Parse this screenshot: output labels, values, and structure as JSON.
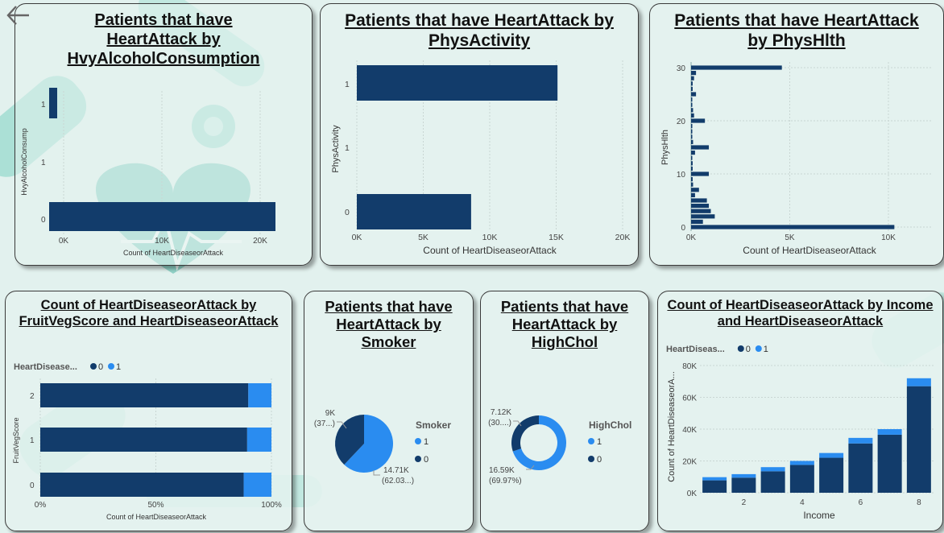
{
  "colors": {
    "dark": "#123c6b",
    "light": "#2a8cf0",
    "grid": "#c9d6d3"
  },
  "charts": {
    "c1": {
      "title": "Patients that have HeartAttack by HvyAlcoholConsumption",
      "type": "bar",
      "ylabel": "HvyAlcoholConsump",
      "xlabel": "Count of HeartDiseaseorAttack",
      "categories": [
        "1",
        "0"
      ],
      "values": [
        900,
        23000
      ],
      "xticks": [
        "0K",
        "10K",
        "20K"
      ],
      "yticks": [
        "1",
        "1",
        "0"
      ]
    },
    "c2": {
      "title": "Patients that have HeartAttack by PhysActivity",
      "type": "bar",
      "ylabel": "PhysActivity",
      "xlabel": "Count of HeartDiseaseorAttack",
      "categories": [
        "1",
        "0"
      ],
      "values": [
        15100,
        8600
      ],
      "xticks": [
        "0K",
        "5K",
        "10K",
        "15K",
        "20K"
      ],
      "yticks": [
        "1",
        "1",
        "0"
      ]
    },
    "c3": {
      "title": "Patients that have HeartAttack by PhysHlth",
      "type": "bar",
      "ylabel": "PhysHlth",
      "xlabel": "Count of HeartDiseaseorAttack",
      "xticks": [
        "0K",
        "5K",
        "10K"
      ],
      "yticks": [
        "30",
        "20",
        "10",
        "0"
      ],
      "x": [
        0,
        1,
        2,
        3,
        4,
        5,
        6,
        7,
        8,
        9,
        10,
        11,
        12,
        13,
        14,
        15,
        16,
        17,
        18,
        19,
        20,
        21,
        22,
        23,
        24,
        25,
        26,
        27,
        28,
        29,
        30
      ],
      "values": [
        10300,
        600,
        1200,
        1000,
        900,
        800,
        200,
        400,
        100,
        80,
        900,
        80,
        80,
        60,
        200,
        900,
        100,
        60,
        60,
        30,
        700,
        150,
        100,
        60,
        60,
        250,
        80,
        80,
        150,
        250,
        4600
      ]
    },
    "c4": {
      "title": "Count of HeartDiseaseorAttack by FruitVegScore and HeartDiseaseorAttack",
      "type": "bar",
      "stacked100": true,
      "legend_title": "HeartDisease...",
      "legend": [
        "0",
        "1"
      ],
      "ylabel": "FruitVegScore",
      "xlabel": "Count of HeartDiseaseorAttack",
      "categories": [
        "2",
        "1",
        "0"
      ],
      "series": [
        {
          "name": "0",
          "values": [
            90,
            89.5,
            88
          ]
        },
        {
          "name": "1",
          "values": [
            10,
            10.5,
            12
          ]
        }
      ],
      "xticks": [
        "0%",
        "50%",
        "100%"
      ]
    },
    "c5": {
      "title": "Patients that have HeartAttack by Smoker",
      "type": "pie",
      "legend_title": "Smoker",
      "legend": [
        "1",
        "0"
      ],
      "slices": [
        {
          "name": "1",
          "value": 14.71,
          "pct": 62.03
        },
        {
          "name": "0",
          "value": 9,
          "pct": 37.97
        }
      ],
      "labels": [
        {
          "v": "9K",
          "p": "(37...)"
        },
        {
          "v": "14.71K",
          "p": "(62.03...)"
        }
      ]
    },
    "c6": {
      "title": "Patients that have HeartAttack by HighChol",
      "type": "donut",
      "legend_title": "HighChol",
      "legend": [
        "1",
        "0"
      ],
      "slices": [
        {
          "name": "1",
          "value": 16.59,
          "pct": 69.97
        },
        {
          "name": "0",
          "value": 7.12,
          "pct": 30.03
        }
      ],
      "labels": [
        {
          "v": "7.12K",
          "p": "(30....)"
        },
        {
          "v": "16.59K",
          "p": "(69.97%)"
        }
      ]
    },
    "c7": {
      "title": "Count of HeartDiseaseorAttack by Income and HeartDiseaseorAttack",
      "type": "bar",
      "stacked": true,
      "legend_title": "HeartDiseas...",
      "legend": [
        "0",
        "1"
      ],
      "ylabel": "Count of HeartDiseaseorA...",
      "xlabel": "Income",
      "categories": [
        1,
        2,
        3,
        4,
        5,
        6,
        7,
        8
      ],
      "series": [
        {
          "name": "0",
          "values": [
            7800,
            9500,
            13500,
            17500,
            22000,
            31000,
            36500,
            67000
          ]
        },
        {
          "name": "1",
          "values": [
            2000,
            2200,
            2600,
            2500,
            3000,
            3500,
            3500,
            5000
          ]
        }
      ],
      "ylim": [
        0,
        80000
      ],
      "yticks": [
        "0K",
        "20K",
        "40K",
        "60K",
        "80K"
      ],
      "xticks": [
        "2",
        "4",
        "6",
        "8"
      ]
    }
  },
  "chart_data": [
    {
      "type": "bar",
      "title": "Patients that have HeartAttack by HvyAlcoholConsumption",
      "categories": [
        "1",
        "0"
      ],
      "values": [
        900,
        23000
      ]
    },
    {
      "type": "bar",
      "title": "Patients that have HeartAttack by PhysActivity",
      "categories": [
        "1",
        "0"
      ],
      "values": [
        15100,
        8600
      ]
    },
    {
      "type": "bar",
      "title": "Patients that have HeartAttack by PhysHlth",
      "x": [
        0,
        30
      ],
      "values": [
        10300,
        4600
      ]
    },
    {
      "type": "bar",
      "title": "Count of HeartDiseaseorAttack by FruitVegScore and HeartDiseaseorAttack",
      "categories": [
        "2",
        "1",
        "0"
      ],
      "series": [
        {
          "name": "0",
          "values": [
            90,
            89.5,
            88
          ]
        },
        {
          "name": "1",
          "values": [
            10,
            10.5,
            12
          ]
        }
      ]
    },
    {
      "type": "pie",
      "title": "Patients that have HeartAttack by Smoker",
      "categories": [
        "1",
        "0"
      ],
      "values": [
        14.71,
        9
      ]
    },
    {
      "type": "pie",
      "title": "Patients that have HeartAttack by HighChol",
      "categories": [
        "1",
        "0"
      ],
      "values": [
        16.59,
        7.12
      ]
    },
    {
      "type": "bar",
      "title": "Count of HeartDiseaseorAttack by Income and HeartDiseaseorAttack",
      "categories": [
        1,
        2,
        3,
        4,
        5,
        6,
        7,
        8
      ],
      "series": [
        {
          "name": "0",
          "values": [
            7800,
            9500,
            13500,
            17500,
            22000,
            31000,
            36500,
            67000
          ]
        },
        {
          "name": "1",
          "values": [
            2000,
            2200,
            2600,
            2500,
            3000,
            3500,
            3500,
            5000
          ]
        }
      ]
    }
  ]
}
